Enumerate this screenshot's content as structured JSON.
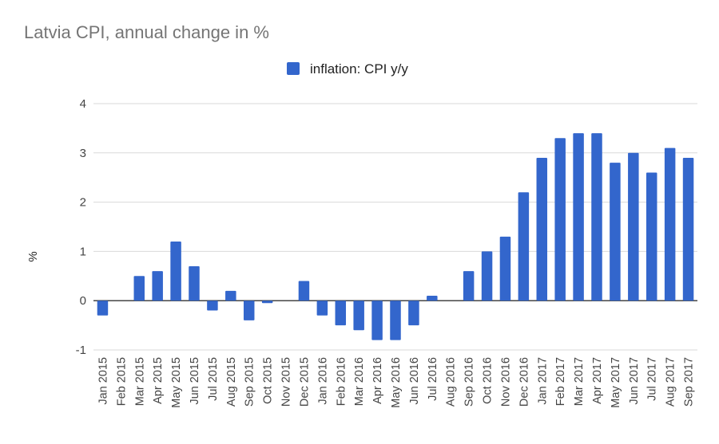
{
  "chart_data": {
    "type": "bar",
    "title": "Latvia CPI, annual change in %",
    "ylabel": "%",
    "xlabel": "",
    "ylim": [
      -1,
      4
    ],
    "yticks": [
      -1,
      0,
      1,
      2,
      3,
      4
    ],
    "grid": true,
    "legend_position": "top",
    "series": [
      {
        "name": "inflation: CPI y/y",
        "color": "#3366cc",
        "values": [
          -0.3,
          0.0,
          0.5,
          0.6,
          1.2,
          0.7,
          -0.2,
          0.2,
          -0.4,
          -0.05,
          0.0,
          0.4,
          -0.3,
          -0.5,
          -0.6,
          -0.8,
          -0.8,
          -0.5,
          0.1,
          0.0,
          0.6,
          1.0,
          1.3,
          2.2,
          2.9,
          3.3,
          3.4,
          3.4,
          2.8,
          3.0,
          2.6,
          3.1,
          2.9
        ]
      }
    ],
    "categories": [
      "Jan 2015",
      "Feb 2015",
      "Mar 2015",
      "Apr 2015",
      "May 2015",
      "Jun 2015",
      "Jul 2015",
      "Aug 2015",
      "Sep 2015",
      "Oct 2015",
      "Nov 2015",
      "Dec 2015",
      "Jan 2016",
      "Feb 2016",
      "Mar 2016",
      "Apr 2016",
      "May 2016",
      "Jun 2016",
      "Jul 2016",
      "Aug 2016",
      "Sep 2016",
      "Oct 2016",
      "Nov 2016",
      "Dec 2016",
      "Jan 2017",
      "Feb 2017",
      "Mar 2017",
      "Apr 2017",
      "May 2017",
      "Jun 2017",
      "Jul 2017",
      "Aug 2017",
      "Sep 2017"
    ]
  }
}
